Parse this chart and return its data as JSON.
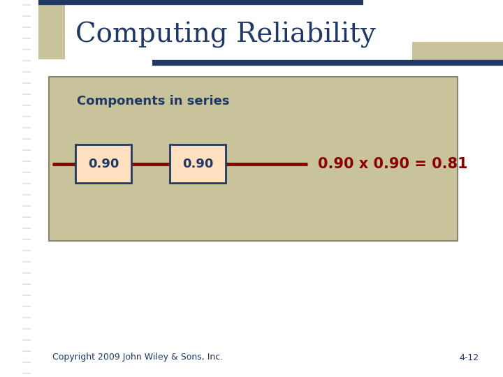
{
  "title": "Computing Reliability",
  "title_color": "#1F3864",
  "background_color": "#FFFFFF",
  "accent_color_dark": "#1F3864",
  "accent_color_tan": "#C8C39A",
  "content_box_color": "#C8C39A",
  "content_box_border": "#888870",
  "series_line_color": "#8B0000",
  "box_fill_color": "#FFE0C0",
  "box_border_color": "#1F3864",
  "box_text_color": "#1F3864",
  "label_text": "Components in series",
  "label_color": "#1F3864",
  "component_values": [
    "0.90",
    "0.90"
  ],
  "result_text": "0.90 x 0.90 = 0.81",
  "result_color": "#8B0000",
  "copyright_text": "Copyright 2009 John Wiley & Sons, Inc.",
  "page_number": "4-12",
  "footer_color": "#1F3864",
  "stripe_color": "#CCCCCC"
}
